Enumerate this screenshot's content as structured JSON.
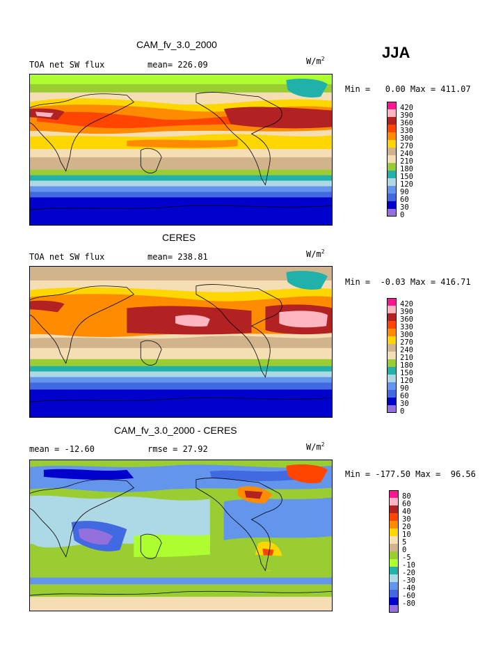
{
  "season": "JJA",
  "panels": [
    {
      "id": "model",
      "title": "CAM_fv_3.0_2000",
      "left_label": "TOA net SW flux",
      "center_label": "mean= 226.09",
      "units": "W/m",
      "units_exp": "2",
      "minmax": "Min =   0.00 Max = 411.07",
      "levels": [
        "420",
        "390",
        "360",
        "330",
        "300",
        "270",
        "240",
        "210",
        "180",
        "150",
        "120",
        "90",
        "60",
        "30",
        "0"
      ],
      "colors": [
        "#ff1493",
        "#ffb6c1",
        "#b22222",
        "#ff4500",
        "#ff8c00",
        "#ffd700",
        "#d2b48c",
        "#f5deb3",
        "#9acd32",
        "#20b2aa",
        "#add8e6",
        "#6495ed",
        "#4169e1",
        "#0000cd",
        "#9370db"
      ]
    },
    {
      "id": "obs",
      "title": "CERES",
      "left_label": "TOA net SW flux",
      "center_label": "mean= 238.81",
      "units": "W/m",
      "units_exp": "2",
      "minmax": "Min =  -0.03 Max = 416.71",
      "levels": [
        "420",
        "390",
        "360",
        "330",
        "300",
        "270",
        "240",
        "210",
        "180",
        "150",
        "120",
        "90",
        "60",
        "30",
        "0"
      ],
      "colors": [
        "#ff1493",
        "#ffb6c1",
        "#b22222",
        "#ff4500",
        "#ff8c00",
        "#ffd700",
        "#d2b48c",
        "#f5deb3",
        "#9acd32",
        "#20b2aa",
        "#add8e6",
        "#6495ed",
        "#4169e1",
        "#0000cd",
        "#9370db"
      ]
    },
    {
      "id": "diff",
      "title": "CAM_fv_3.0_2000 - CERES",
      "left_label": "mean = -12.60",
      "center_label": "rmse =  27.92",
      "units": "W/m",
      "units_exp": "2",
      "minmax": "Min = -177.50 Max =  96.56",
      "levels": [
        "80",
        "60",
        "40",
        "30",
        "20",
        "10",
        "5",
        "0",
        "-5",
        "-10",
        "-20",
        "-30",
        "-40",
        "-60",
        "-80"
      ],
      "colors": [
        "#ff1493",
        "#ffb6c1",
        "#b22222",
        "#ff4500",
        "#ff8c00",
        "#ffd700",
        "#f5deb3",
        "#d2b48c",
        "#9acd32",
        "#adff2f",
        "#20b2aa",
        "#add8e6",
        "#6495ed",
        "#4169e1",
        "#0000cd",
        "#9370db"
      ]
    }
  ]
}
